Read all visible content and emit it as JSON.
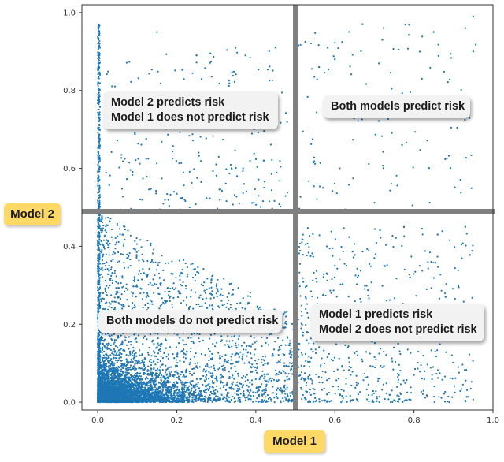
{
  "chart_data": {
    "type": "scatter",
    "title": "",
    "xlabel": "Model 1",
    "ylabel": "Model 2",
    "xlim": [
      -0.04,
      1.0
    ],
    "ylim": [
      -0.02,
      1.02
    ],
    "x_ticks": [
      "0.0",
      "0.2",
      "0.4",
      "0.6",
      "0.8",
      "1.0"
    ],
    "y_ticks": [
      "0.0",
      "0.2",
      "0.4",
      "0.6",
      "0.8",
      "1.0"
    ],
    "grid": false,
    "point_color": "#1f77b4",
    "threshold": {
      "x": 0.5,
      "y": 0.49
    },
    "quadrant_labels": {
      "top_left": [
        "Model 2 predicts risk",
        "Model 1 does not predict risk"
      ],
      "top_right": [
        "Both models predict risk"
      ],
      "bottom_left": [
        "Both models do not predict risk"
      ],
      "bottom_right": [
        "Model 1 predicts risk",
        "Model 2 does not predict risk"
      ]
    },
    "sample_points": [
      [
        0.15,
        0.95
      ],
      [
        0.25,
        0.89
      ],
      [
        0.45,
        0.91
      ],
      [
        0.67,
        0.97
      ],
      [
        0.72,
        0.93
      ],
      [
        0.85,
        0.95
      ],
      [
        0.93,
        0.96
      ],
      [
        0.95,
        0.99
      ],
      [
        0.95,
        0.9
      ],
      [
        0.56,
        0.86
      ],
      [
        0.6,
        0.88
      ],
      [
        0.82,
        0.83
      ],
      [
        0.9,
        0.76
      ],
      [
        0.6,
        0.74
      ],
      [
        0.77,
        0.66
      ],
      [
        0.3,
        0.61
      ],
      [
        0.37,
        0.56
      ],
      [
        0.42,
        0.62
      ],
      [
        0.22,
        0.52
      ],
      [
        0.57,
        0.55
      ],
      [
        0.86,
        0.43
      ],
      [
        0.93,
        0.45
      ],
      [
        0.79,
        0.32
      ],
      [
        0.88,
        0.27
      ],
      [
        0.6,
        0.35
      ],
      [
        0.76,
        0.15
      ],
      [
        0.8,
        0.07
      ],
      [
        0.58,
        0.02
      ],
      [
        0.64,
        0.07
      ],
      [
        0.71,
        0.06
      ]
    ]
  },
  "colors": {
    "points": "#1f77b4",
    "divider": "#808080",
    "axis_tag": "#ffd966",
    "callout": "#f2f2f2"
  }
}
